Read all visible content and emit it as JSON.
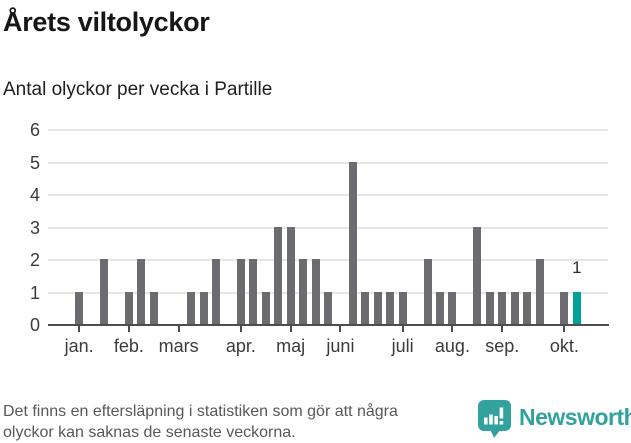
{
  "header": {
    "title": "Årets viltolyckor",
    "subtitle": "Antal olyckor per vecka i Partille"
  },
  "chart_data": {
    "type": "bar",
    "title": "Årets viltolyckor",
    "subtitle": "Antal olyckor per vecka i Partille",
    "ylabel": "",
    "xlabel": "",
    "ylim": [
      0,
      6
    ],
    "yticks": [
      0,
      1,
      2,
      3,
      4,
      5,
      6
    ],
    "grid": true,
    "legend": false,
    "x_unit": "vecka",
    "weekly_values": [
      0,
      0,
      1,
      0,
      2,
      0,
      1,
      2,
      1,
      0,
      0,
      1,
      1,
      2,
      0,
      2,
      2,
      1,
      3,
      3,
      2,
      2,
      1,
      0,
      5,
      1,
      1,
      1,
      1,
      0,
      2,
      1,
      1,
      0,
      3,
      1,
      1,
      1,
      1,
      2,
      0,
      1,
      1,
      0,
      0
    ],
    "month_ticks": [
      {
        "label": "jan.",
        "slot": 2
      },
      {
        "label": "feb.",
        "slot": 6
      },
      {
        "label": "mars",
        "slot": 10
      },
      {
        "label": "apr.",
        "slot": 15
      },
      {
        "label": "maj",
        "slot": 19
      },
      {
        "label": "juni",
        "slot": 23
      },
      {
        "label": "juli",
        "slot": 28
      },
      {
        "label": "aug.",
        "slot": 32
      },
      {
        "label": "sep.",
        "slot": 36
      },
      {
        "label": "okt.",
        "slot": 41
      }
    ],
    "highlight": {
      "slot": 42,
      "value": 1,
      "label": "1"
    },
    "colors": {
      "bar": "#6b6b70",
      "highlight": "#00a09b",
      "grid": "#e6e6e6",
      "axis": "#4d4d4d",
      "tick_label": "#3b3b3b"
    }
  },
  "footer": {
    "lines": [
      "Det finns en eftersläpning i statistiken som gör att några",
      "olyckor kan saknas de senaste veckorna."
    ]
  },
  "logo": {
    "icon": "newsworthy-logo-icon",
    "wordmark": "Newsworthy",
    "color": "#31a29e"
  }
}
